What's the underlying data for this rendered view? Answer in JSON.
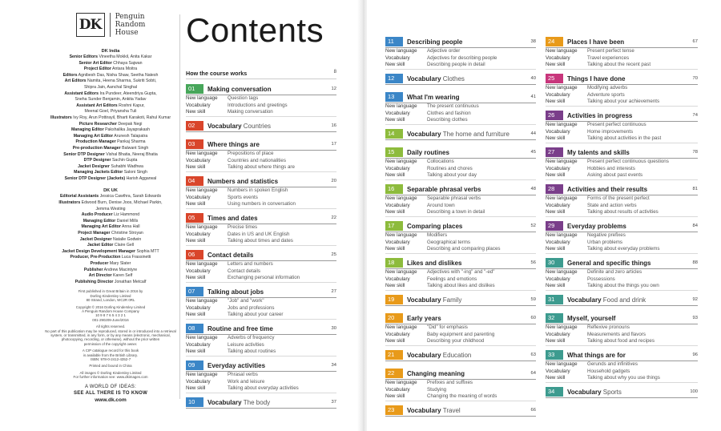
{
  "heading": "Contents",
  "publisher_logo": {
    "dk": "DK",
    "line1": "Penguin",
    "line2": "Random",
    "line3": "House"
  },
  "credits": {
    "india_head": "DK India",
    "india": [
      [
        "Senior Editors",
        "Vineetha Mokkil, Anita Kakar"
      ],
      [
        "Senior Art Editor",
        "Chhaya Sajwan"
      ],
      [
        "Project Editor",
        "Antara Moitra"
      ],
      [
        "Editors",
        "Agnibesh Das, Nisha Shaw, Seetha Natesh"
      ],
      [
        "Art Editors",
        "Namita, Heena Sharma, Sukriti Sobti,"
      ],
      [
        "",
        "Shipra Jain, Aanchal Singhal"
      ],
      [
        "Assistant Editors",
        "Ira Pundeer, Ateendriya Gupta,"
      ],
      [
        "",
        "Sneha Sunder Benjamin, Ankita Yadav"
      ],
      [
        "Assistant Art Editors",
        "Roshni Kapur,"
      ],
      [
        "",
        "Meenal Goel, Priyansha Tuli"
      ],
      [
        "Illustrators",
        "Ivy Roy, Arun Pottirayil, Bharti Karakoti, Rahul Kumar"
      ],
      [
        "Picture Researcher",
        "Deepak Negi"
      ],
      [
        "Managing Editor",
        "Pakshalika Jayaprakash"
      ],
      [
        "Managing Art Editor",
        "Arunesh Talapatra"
      ],
      [
        "Production Manager",
        "Pankaj Sharma"
      ],
      [
        "Pre-production Manager",
        "Balwant Singh"
      ],
      [
        "Senior DTP Designer",
        "Vishal Bhatia, Neeraj Bhatia"
      ],
      [
        "DTP Designer",
        "Sachin Gupta"
      ],
      [
        "Jacket Designer",
        "Suhabhi Wadhwa"
      ],
      [
        "Managing Jackets Editor",
        "Saloni Singh"
      ],
      [
        "Senior DTP Designer (Jackets)",
        "Harish Aggarwal"
      ]
    ],
    "uk_head": "DK UK",
    "uk": [
      [
        "Editorial Assistants",
        "Jessica Cawthra, Sarah Edwards"
      ],
      [
        "Illustrators",
        "Edwood Burn, Denise Joos, Michael Parkin,"
      ],
      [
        "",
        "Jemma Westing"
      ],
      [
        "Audio Producer",
        "Liz Hammond"
      ],
      [
        "Managing Editor",
        "Daniel Mills"
      ],
      [
        "Managing Art Editor",
        "Anna Hall"
      ],
      [
        "Project Manager",
        "Christine Stroyan"
      ],
      [
        "Jacket Designer",
        "Natalie Godwin"
      ],
      [
        "Jacket Editor",
        "Claire Gell"
      ],
      [
        "Jacket Design Development Manager",
        "Sophia MTT"
      ],
      [
        "Producer, Pre-Production",
        "Luca Frassinetti"
      ],
      [
        "Producer",
        "Mary Slater"
      ],
      [
        "Publisher",
        "Andrew Macintyre"
      ],
      [
        "Art Director",
        "Karen Self"
      ],
      [
        "Publishing Director",
        "Jonathan Metcalf"
      ]
    ],
    "legal1": [
      "First published in Great Britain in 2016 by",
      "Dorling Kindersley Limited",
      "80 Strand, London, WC2R 0RL"
    ],
    "legal2": [
      "Copyright © 2016 Dorling Kindersley Limited",
      "A Penguin Random House Company",
      "10 9 8 7 6 5 4 3 2 1",
      "001-290209-June/2016"
    ],
    "legal3": [
      "All rights reserved.",
      "No part of this publication may be reproduced, stored in or introduced into a retrieval",
      "system, or transmitted, in any form, or by any means (electronic, mechanical,",
      "photocopying, recording, or otherwise), without the prior written",
      "permission of the copyright owner."
    ],
    "legal4": [
      "A CIP catalogue record for this book",
      "is available from the British Library.",
      "ISBN: 978-0-2412-4352-7"
    ],
    "legal5": [
      "Printed and bound in China"
    ],
    "legal6": [
      "All images © Dorling Kindersley Limited",
      "For further information see: www.dkimages.com"
    ],
    "tagline1": "A WORLD OF IDEAS:",
    "tagline2": "SEE ALL THERE IS TO KNOW",
    "website": "www.dk.com"
  },
  "intro": {
    "title": "How the course works",
    "page": "8"
  },
  "labels": {
    "lang": "New language",
    "vocab": "Vocabulary",
    "skill": "New skill"
  },
  "colors": {
    "green": "#47a65a",
    "red": "#d9452b",
    "blue": "#3b86c7",
    "teal": "#3d9b8f",
    "lime": "#8dbb3c",
    "orange": "#e89a1a",
    "purple": "#7a3e8a",
    "pink": "#c8367c"
  },
  "units": [
    {
      "n": "01",
      "title": "Making conversation",
      "page": "12",
      "color": "#47a65a",
      "lang": "Question tags",
      "vocab": "Introductions and greetings",
      "skill": "Making conversation"
    },
    {
      "n": "02",
      "title": "Vocabulary",
      "vtitle": "Countries",
      "page": "16",
      "color": "#d9452b"
    },
    {
      "n": "03",
      "title": "Where things are",
      "page": "17",
      "color": "#d9452b",
      "lang": "Prepositions of place",
      "vocab": "Countries and nationalities",
      "skill": "Talking about where things are"
    },
    {
      "n": "04",
      "title": "Numbers and statistics",
      "page": "20",
      "color": "#d9452b",
      "lang": "Numbers in spoken English",
      "vocab": "Sports events",
      "skill": "Using numbers in conversation"
    },
    {
      "n": "05",
      "title": "Times and dates",
      "page": "22",
      "color": "#d9452b",
      "lang": "Precise times",
      "vocab": "Dates in US and UK English",
      "skill": "Talking about times and dates"
    },
    {
      "n": "06",
      "title": "Contact details",
      "page": "25",
      "color": "#d9452b",
      "lang": "Letters and numbers",
      "vocab": "Contact details",
      "skill": "Exchanging personal information"
    },
    {
      "n": "07",
      "title": "Talking about jobs",
      "page": "27",
      "color": "#3b86c7",
      "lang": "\"Job\" and \"work\"",
      "vocab": "Jobs and professions",
      "skill": "Talking about your career"
    },
    {
      "n": "08",
      "title": "Routine and free time",
      "page": "30",
      "color": "#3b86c7",
      "lang": "Adverbs of frequency",
      "vocab": "Leisure activities",
      "skill": "Talking about routines"
    },
    {
      "n": "09",
      "title": "Everyday activities",
      "page": "34",
      "color": "#3b86c7",
      "lang": "Phrasal verbs",
      "vocab": "Work and leisure",
      "skill": "Talking about everyday activities"
    },
    {
      "n": "10",
      "title": "Vocabulary",
      "vtitle": "The body",
      "page": "37",
      "color": "#3b86c7"
    },
    {
      "n": "11",
      "title": "Describing people",
      "page": "38",
      "color": "#3b86c7",
      "lang": "Adjective order",
      "vocab": "Adjectives for describing people",
      "skill": "Describing people in detail"
    },
    {
      "n": "12",
      "title": "Vocabulary",
      "vtitle": "Clothes",
      "page": "40",
      "color": "#3b86c7"
    },
    {
      "n": "13",
      "title": "What I'm wearing",
      "page": "41",
      "color": "#3b86c7",
      "lang": "The present continuous",
      "vocab": "Clothes and fashion",
      "skill": "Describing clothes"
    },
    {
      "n": "14",
      "title": "Vocabulary",
      "vtitle": "The home and furniture",
      "page": "44",
      "color": "#8dbb3c"
    },
    {
      "n": "15",
      "title": "Daily routines",
      "page": "45",
      "color": "#8dbb3c",
      "lang": "Collocations",
      "vocab": "Routines and chores",
      "skill": "Talking about your day"
    },
    {
      "n": "16",
      "title": "Separable phrasal verbs",
      "page": "48",
      "color": "#8dbb3c",
      "lang": "Separable phrasal verbs",
      "vocab": "Around town",
      "skill": "Describing a town in detail"
    },
    {
      "n": "17",
      "title": "Comparing places",
      "page": "52",
      "color": "#8dbb3c",
      "lang": "Modifiers",
      "vocab": "Geographical terms",
      "skill": "Describing and comparing places"
    },
    {
      "n": "18",
      "title": "Likes and dislikes",
      "page": "56",
      "color": "#8dbb3c",
      "lang": "Adjectives with \"-ing\" and \"-ed\"",
      "vocab": "Feelings and emotions",
      "skill": "Talking about likes and dislikes"
    },
    {
      "n": "19",
      "title": "Vocabulary",
      "vtitle": "Family",
      "page": "59",
      "color": "#e89a1a"
    },
    {
      "n": "20",
      "title": "Early years",
      "page": "60",
      "color": "#e89a1a",
      "lang": "\"Did\" for emphasis",
      "vocab": "Baby equipment and parenting",
      "skill": "Describing your childhood"
    },
    {
      "n": "21",
      "title": "Vocabulary",
      "vtitle": "Education",
      "page": "63",
      "color": "#e89a1a"
    },
    {
      "n": "22",
      "title": "Changing meaning",
      "page": "64",
      "color": "#e89a1a",
      "lang": "Prefixes and suffixes",
      "vocab": "Studying",
      "skill": "Changing the meaning of words"
    },
    {
      "n": "23",
      "title": "Vocabulary",
      "vtitle": "Travel",
      "page": "66",
      "color": "#e89a1a"
    },
    {
      "n": "24",
      "title": "Places I have been",
      "page": "67",
      "color": "#e89a1a",
      "lang": "Present perfect tense",
      "vocab": "Travel experiences",
      "skill": "Talking about the recent past"
    },
    {
      "n": "25",
      "title": "Things I have done",
      "page": "70",
      "color": "#c8367c",
      "lang": "Modifying adverbs",
      "vocab": "Adventure sports",
      "skill": "Talking about your achievements"
    },
    {
      "n": "26",
      "title": "Activities in progress",
      "page": "74",
      "color": "#7a3e8a",
      "lang": "Present perfect continuous",
      "vocab": "Home improvements",
      "skill": "Talking about activities in the past"
    },
    {
      "n": "27",
      "title": "My talents and skills",
      "page": "78",
      "color": "#7a3e8a",
      "lang": "Present perfect continuous questions",
      "vocab": "Hobbies and interests",
      "skill": "Asking about past events"
    },
    {
      "n": "28",
      "title": "Activities and their results",
      "page": "81",
      "color": "#7a3e8a",
      "lang": "Forms of the present perfect",
      "vocab": "State and action verbs",
      "skill": "Talking about results of activities"
    },
    {
      "n": "29",
      "title": "Everyday problems",
      "page": "84",
      "color": "#7a3e8a",
      "lang": "Negative prefixes",
      "vocab": "Urban problems",
      "skill": "Talking about everyday problems"
    },
    {
      "n": "30",
      "title": "General and specific things",
      "page": "88",
      "color": "#3d9b8f",
      "lang": "Definite and zero articles",
      "vocab": "Possessions",
      "skill": "Talking about the things you own"
    },
    {
      "n": "31",
      "title": "Vocabulary",
      "vtitle": "Food and drink",
      "page": "92",
      "color": "#3d9b8f"
    },
    {
      "n": "32",
      "title": "Myself, yourself",
      "page": "93",
      "color": "#3d9b8f",
      "lang": "Reflexive pronouns",
      "vocab": "Measurements and flavors",
      "skill": "Talking about food and recipes"
    },
    {
      "n": "33",
      "title": "What things are for",
      "page": "96",
      "color": "#3d9b8f",
      "lang": "Gerunds and infinitives",
      "vocab": "Household gadgets",
      "skill": "Talking about why you use things"
    },
    {
      "n": "34",
      "title": "Vocabulary",
      "vtitle": "Sports",
      "page": "100",
      "color": "#3d9b8f"
    }
  ]
}
